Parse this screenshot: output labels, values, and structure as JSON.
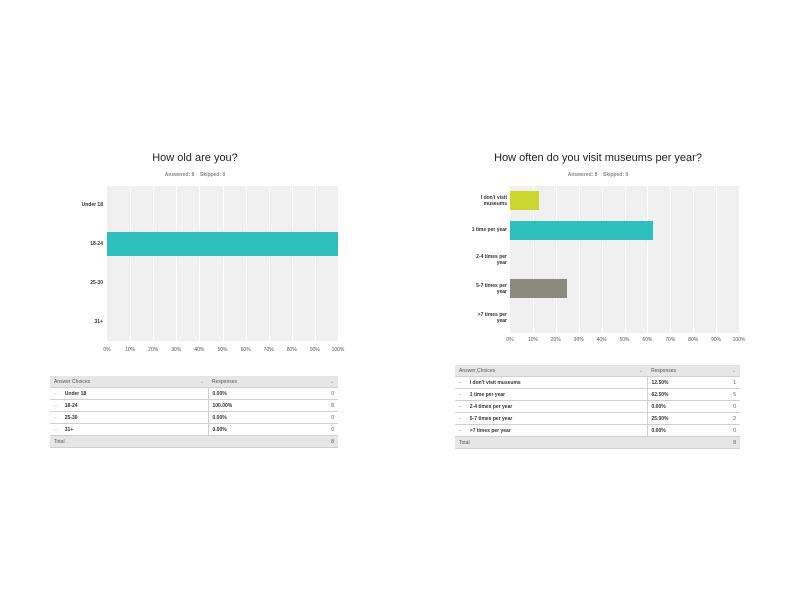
{
  "chart_data": [
    {
      "type": "bar",
      "orientation": "horizontal",
      "title": "How old are you?",
      "answered": "Answered: 8",
      "skipped": "Skipped: 0",
      "categories": [
        "Under 18",
        "18-24",
        "25-30",
        "31+"
      ],
      "values": [
        0,
        100,
        0,
        0
      ],
      "bar_colors": [
        "#2fbfbd",
        "#2fbfbd",
        "#2fbfbd",
        "#2fbfbd"
      ],
      "xlim": [
        0,
        100
      ],
      "x_ticks": [
        "0%",
        "10%",
        "20%",
        "30%",
        "40%",
        "50%",
        "60%",
        "70%",
        "80%",
        "90%",
        "100%"
      ],
      "grid": true
    },
    {
      "type": "bar",
      "orientation": "horizontal",
      "title": "How often do you visit museums per year?",
      "answered": "Answered: 8",
      "skipped": "Skipped: 0",
      "categories": [
        [
          "I don't visit",
          "museums"
        ],
        [
          "1 time per year"
        ],
        [
          "2-4 times per",
          "year"
        ],
        [
          "5-7 times per",
          "year"
        ],
        [
          ">7 times per",
          "year"
        ]
      ],
      "values": [
        12.5,
        62.5,
        0,
        25,
        0
      ],
      "bar_colors": [
        "#cdd62f",
        "#2fbfbd",
        "#2fbfbd",
        "#8a8a7e",
        "#2fbfbd"
      ],
      "xlim": [
        0,
        100
      ],
      "x_ticks": [
        "0%",
        "10%",
        "20%",
        "30%",
        "40%",
        "50%",
        "60%",
        "70%",
        "80%",
        "90%",
        "100%"
      ],
      "grid": true
    }
  ],
  "tables": [
    {
      "header": {
        "choices": "Answer Choices",
        "responses": "Responses"
      },
      "rows": [
        {
          "choice": "Under 18",
          "pct": "0.00%",
          "count": "0"
        },
        {
          "choice": "18-24",
          "pct": "100.00%",
          "count": "8"
        },
        {
          "choice": "25-30",
          "pct": "0.00%",
          "count": "0"
        },
        {
          "choice": "31+",
          "pct": "0.00%",
          "count": "0"
        }
      ],
      "total_label": "Total",
      "total_count": "8"
    },
    {
      "header": {
        "choices": "Answer Choices",
        "responses": "Responses"
      },
      "rows": [
        {
          "choice": "I don't visit museums",
          "pct": "12.50%",
          "count": "1"
        },
        {
          "choice": "1 time per year",
          "pct": "62.50%",
          "count": "5"
        },
        {
          "choice": "2-4 times per year",
          "pct": "0.00%",
          "count": "0"
        },
        {
          "choice": "5-7 times per year",
          "pct": "25.00%",
          "count": "2"
        },
        {
          "choice": ">7 times per year",
          "pct": "0.00%",
          "count": "0"
        }
      ],
      "total_label": "Total",
      "total_count": "8"
    }
  ]
}
